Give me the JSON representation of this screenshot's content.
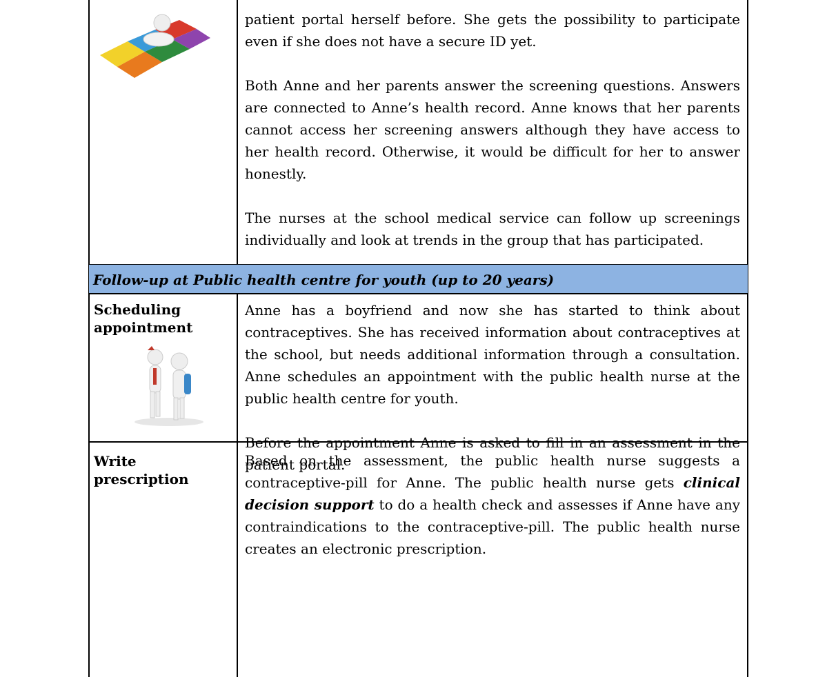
{
  "table": {
    "rows": [
      {
        "paragraphs": [
          "patient portal herself before. She gets the possibility to participate even if she does not have a secure ID yet.",
          "Both Anne and her parents answer the screening questions. Answers are connected to Anne’s health record. Anne knows that her parents cannot access her screening answers although they have access to her health record. Otherwise, it would be difficult for her to answer honestly.",
          "The nurses at the school medical service can follow up screenings individually and look at trends in the group that has participated."
        ]
      },
      {
        "section": "Follow-up at Public health centre for youth (up to 20 years)"
      },
      {
        "label": "Scheduling appointment",
        "paragraphs": [
          "Anne has a boyfriend and now she has started to think about contraceptives. She has received information about contraceptives at the school, but needs additional information through a consultation. Anne schedules an appointment with the public health nurse at the public health centre for youth.",
          "Before the appointment Anne is asked to fill in an assessment in the patient portal."
        ]
      },
      {
        "label": "Write prescription",
        "paragraphs": [
          [
            "Based on the assessment, the public health nurse suggests a contraceptive-pill for Anne. The public health nurse gets ",
            "clinical decision support",
            " to do a health check and assesses if Anne have any contraindications to the contraceptive-pill. The public health nurse creates an electronic prescription."
          ]
        ]
      }
    ]
  }
}
